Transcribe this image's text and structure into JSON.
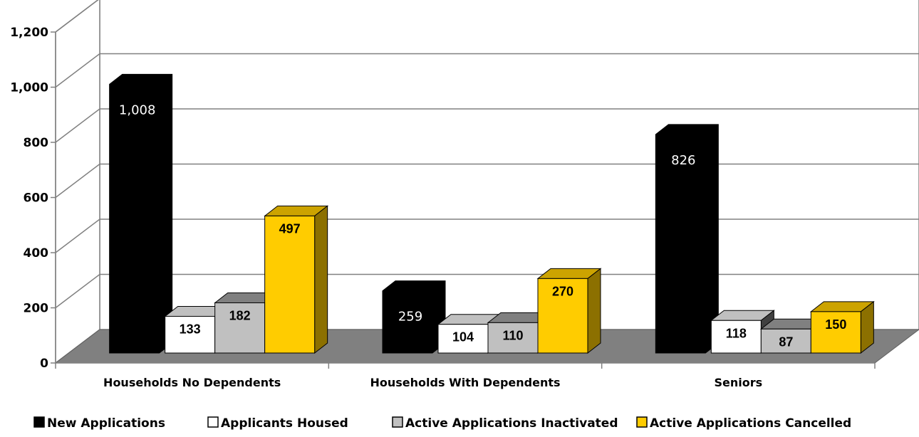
{
  "chart_data": {
    "type": "bar",
    "categories": [
      "Households No Dependents",
      "Households With Dependents",
      "Seniors"
    ],
    "series": [
      {
        "name": "New Applications",
        "values": [
          1008,
          259,
          826
        ],
        "labels": [
          "1,008",
          "259",
          "826"
        ],
        "color": "#000000"
      },
      {
        "name": "Applicants Housed",
        "values": [
          133,
          104,
          118
        ],
        "labels": [
          "133",
          "104",
          "118"
        ],
        "color": "#ffffff"
      },
      {
        "name": "Active Applications Inactivated",
        "values": [
          182,
          110,
          87
        ],
        "labels": [
          "182",
          "110",
          "87"
        ],
        "color": "#c0c0c0"
      },
      {
        "name": "Active Applications Cancelled",
        "values": [
          497,
          270,
          150
        ],
        "labels": [
          "497",
          "270",
          "150"
        ],
        "color": "#ffcc00"
      }
    ],
    "ylim": [
      0,
      1200
    ],
    "yticks": [
      0,
      200,
      400,
      600,
      800,
      1000,
      1200
    ],
    "ytick_labels": [
      "0",
      "200",
      "400",
      "600",
      "800",
      "1,000",
      "1,200"
    ],
    "grid": true,
    "legend": "bottom",
    "three_d": true
  }
}
